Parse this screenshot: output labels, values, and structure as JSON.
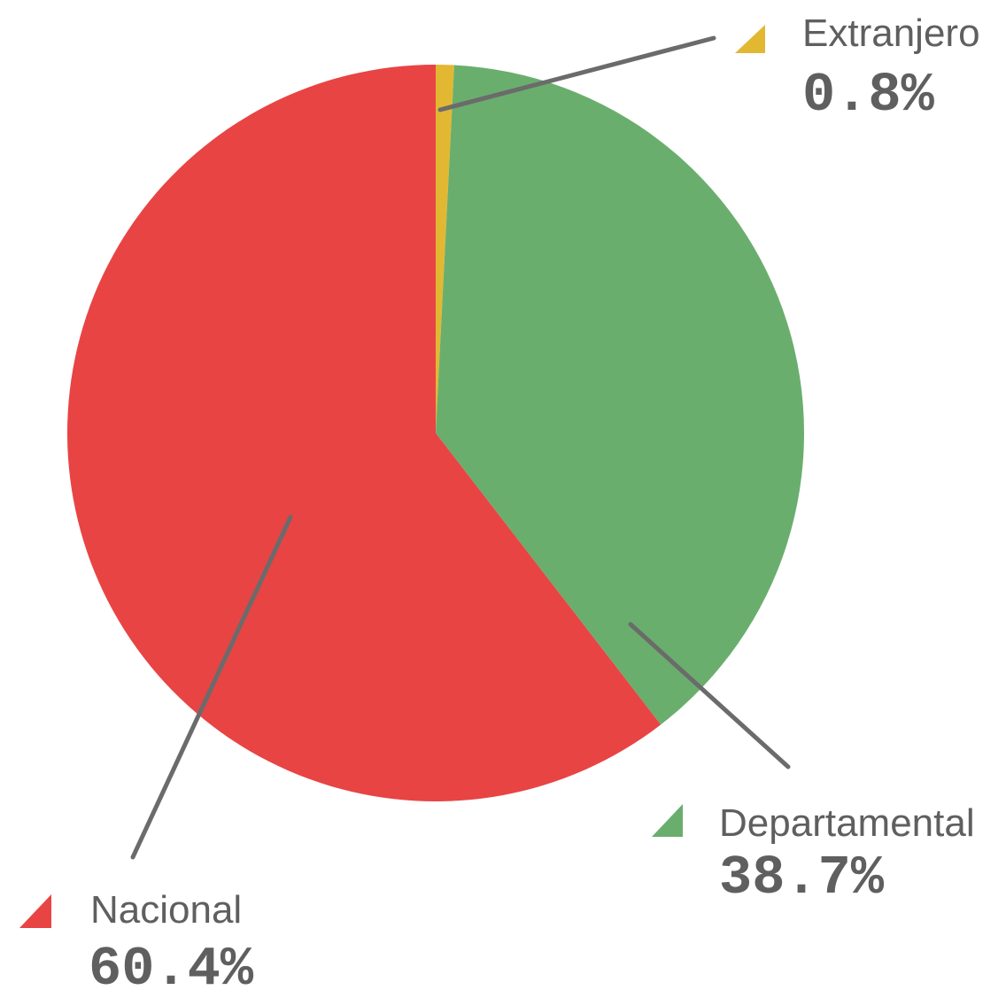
{
  "chart_data": {
    "type": "pie",
    "slices": [
      {
        "label": "Extranjero",
        "value": 0.8,
        "display": "0.8%",
        "color": "#E2B833"
      },
      {
        "label": "Departamental",
        "value": 38.7,
        "display": "38.7%",
        "color": "#6AAE6E"
      },
      {
        "label": "Nacional",
        "value": 60.4,
        "display": "60.4%",
        "color": "#E84444"
      }
    ],
    "start_angle_deg": 0,
    "direction": "clockwise",
    "legend_markers": "triangle"
  }
}
